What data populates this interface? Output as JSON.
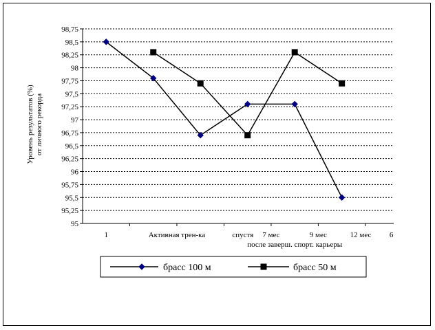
{
  "chart_data": {
    "type": "line",
    "title": "",
    "ylabel_lines": [
      "Уровень результатов (%)",
      "от личного рекорда"
    ],
    "ylim": [
      95,
      98.75
    ],
    "yticks": [
      "95",
      "95,25",
      "95,5",
      "95,75",
      "96",
      "96,25",
      "96,5",
      "96,75",
      "97",
      "97,25",
      "97,5",
      "97,75",
      "98",
      "98,25",
      "98,5",
      "98,75"
    ],
    "x_labels": [
      {
        "text": "1",
        "row": 0,
        "at": 0.5
      },
      {
        "text": "Активная трен-ка",
        "row": 0,
        "at": 2.0
      },
      {
        "text": "спустя",
        "row": 0,
        "at": 3.4
      },
      {
        "text": "7 мес",
        "row": 0,
        "at": 4.0
      },
      {
        "text": "9 мес",
        "row": 0,
        "at": 5.0
      },
      {
        "text": "12 мес",
        "row": 0,
        "at": 5.9
      },
      {
        "text": "6",
        "row": 0,
        "at": 6.55
      },
      {
        "text": "после заверш. спорт. карьеры",
        "row": 1,
        "at": 4.5
      }
    ],
    "series": [
      {
        "name": "брасс 100 м",
        "marker": "diamond",
        "color": "#000080",
        "points": [
          [
            0.5,
            98.5
          ],
          [
            1.5,
            97.8
          ],
          [
            2.5,
            96.7
          ],
          [
            3.5,
            97.3
          ],
          [
            4.5,
            97.3
          ],
          [
            5.5,
            95.5
          ]
        ]
      },
      {
        "name": "брасс 50 м",
        "marker": "square",
        "color": "#000000",
        "points": [
          [
            1.5,
            98.3
          ],
          [
            2.5,
            97.7
          ],
          [
            3.5,
            96.7
          ],
          [
            4.5,
            98.3
          ],
          [
            5.5,
            97.7
          ]
        ]
      }
    ],
    "xlim": [
      0,
      6.6
    ],
    "grid": true,
    "legend_position": "bottom"
  }
}
